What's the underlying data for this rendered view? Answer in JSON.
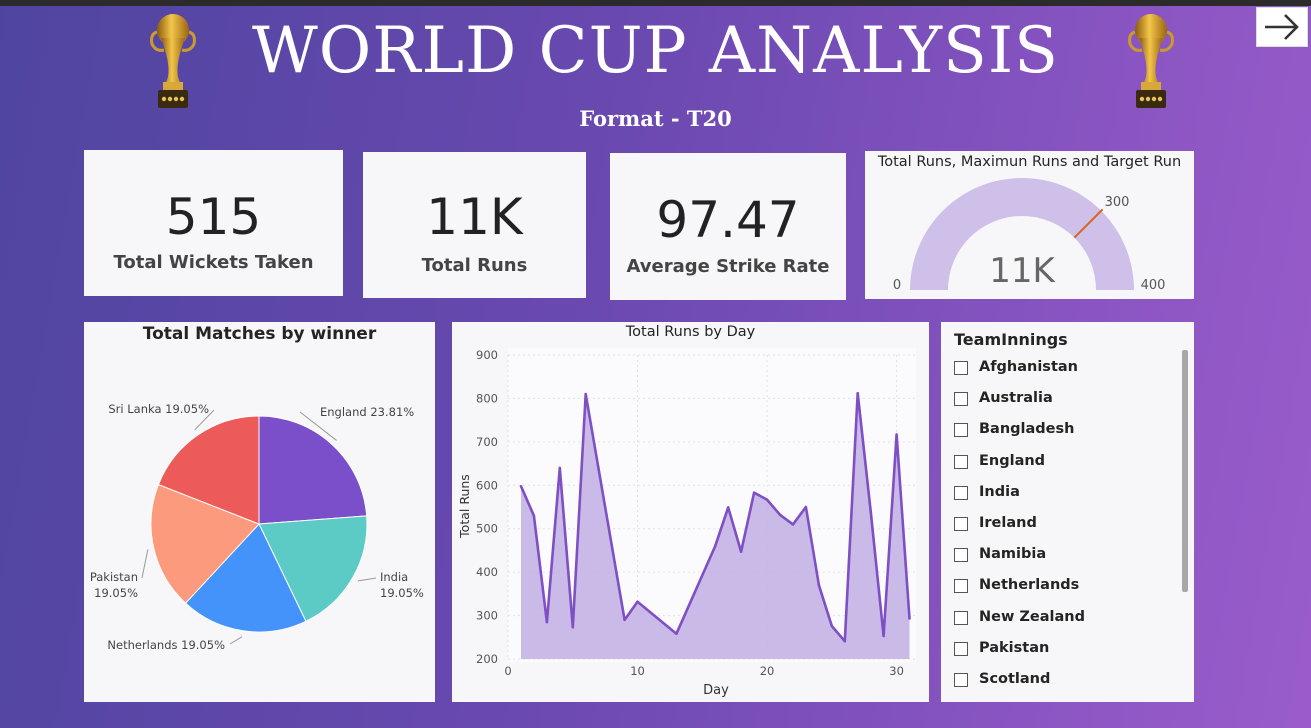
{
  "header": {
    "title": "WORLD CUP ANALYSIS",
    "subtitle": "Format - T20"
  },
  "kpis": {
    "wickets": {
      "value": "515",
      "label": "Total Wickets Taken"
    },
    "runs": {
      "value": "11K",
      "label": "Total Runs"
    },
    "strike_rate": {
      "value": "97.47",
      "label": "Average Strike Rate"
    }
  },
  "colors": {
    "gauge_fill": "#cfc0ea",
    "gauge_target": "#d5661e",
    "line": "#7f4fc4",
    "area": "#c4b2e6",
    "pie": [
      "#7a4fc9",
      "#5ccbc6",
      "#4493fa",
      "#fb9a7c",
      "#ec5a5a"
    ]
  },
  "slicer": {
    "title": "TeamInnings",
    "items": [
      "Afghanistan",
      "Australia",
      "Bangladesh",
      "England",
      "India",
      "Ireland",
      "Namibia",
      "Netherlands",
      "New Zealand",
      "Pakistan",
      "Scotland"
    ]
  },
  "chart_data": [
    {
      "type": "gauge",
      "title": "Total Runs, Maximun Runs and Target Run",
      "value": 11000,
      "value_label": "11K",
      "min": 0,
      "max": 400,
      "target": 300,
      "min_label": "0",
      "max_label": "400",
      "target_label": "300"
    },
    {
      "type": "pie",
      "title": "Total Matches by winner",
      "slices": [
        {
          "name": "England",
          "value": 23.81,
          "label": "England 23.81%"
        },
        {
          "name": "India",
          "value": 19.05,
          "label": "India",
          "label2": "19.05%"
        },
        {
          "name": "Netherlands",
          "value": 19.05,
          "label": "Netherlands 19.05%"
        },
        {
          "name": "Pakistan",
          "value": 19.05,
          "label": "Pakistan",
          "label2": "19.05%"
        },
        {
          "name": "Sri Lanka",
          "value": 19.05,
          "label": "Sri Lanka 19.05%"
        }
      ]
    },
    {
      "type": "area",
      "title": "Total Runs by Day",
      "xlabel": "Day",
      "ylabel": "Total Runs",
      "xlim": [
        0,
        31.5
      ],
      "ylim": [
        200,
        900
      ],
      "xticks": [
        0,
        10,
        20,
        30
      ],
      "yticks": [
        200,
        300,
        400,
        500,
        600,
        700,
        800,
        900
      ],
      "x": [
        1,
        2,
        3,
        4,
        5,
        6,
        9,
        10,
        13,
        16,
        17,
        18,
        19,
        20,
        21,
        22,
        23,
        24,
        25,
        26,
        27,
        28,
        29,
        30,
        31
      ],
      "y": [
        598,
        530,
        285,
        640,
        273,
        810,
        290,
        332,
        258,
        460,
        549,
        447,
        583,
        567,
        532,
        510,
        550,
        370,
        276,
        241,
        812,
        540,
        253,
        717,
        293
      ]
    }
  ]
}
